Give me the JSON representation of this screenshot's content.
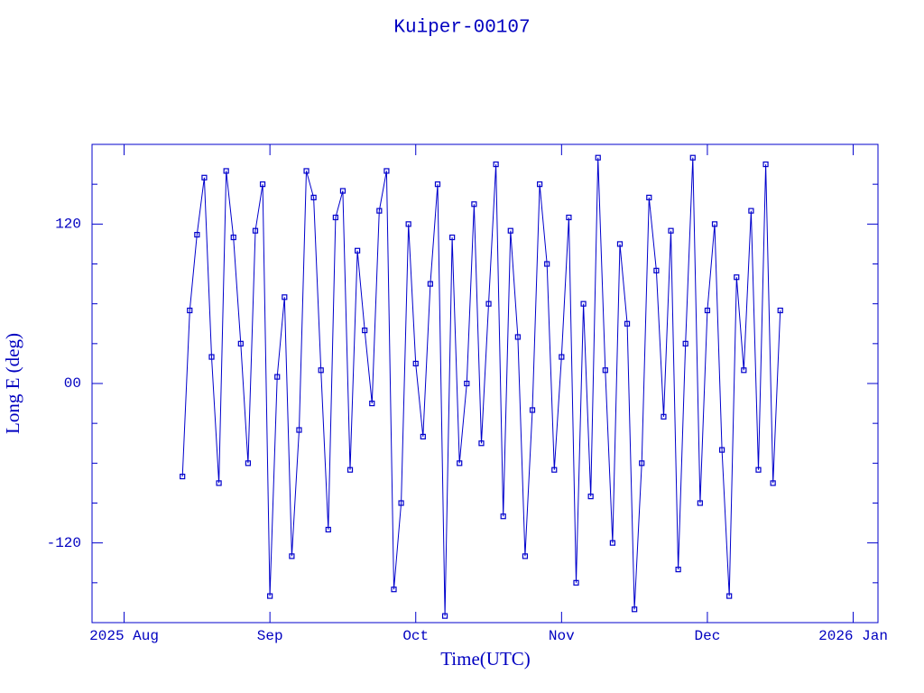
{
  "chart_data": {
    "type": "line",
    "title": "Kuiper-00107",
    "xlabel": "Time(UTC)",
    "ylabel": "Long E (deg)",
    "color": "#0000cc",
    "xlim": [
      7.78,
      13.17
    ],
    "xticks": [
      {
        "value": 8,
        "label": "2025 Aug"
      },
      {
        "value": 9,
        "label": "Sep"
      },
      {
        "value": 10,
        "label": "Oct"
      },
      {
        "value": 11,
        "label": "Nov"
      },
      {
        "value": 12,
        "label": "Dec"
      },
      {
        "value": 13,
        "label": "2026 Jan"
      }
    ],
    "ylim": [
      -180,
      180
    ],
    "yticks": [
      -120,
      {
        "value": 0,
        "label": "00"
      },
      120
    ],
    "yticks_minor": [
      -150,
      -90,
      -60,
      -30,
      30,
      60,
      90,
      150
    ],
    "x": [
      8.4,
      8.45,
      8.5,
      8.55,
      8.6,
      8.65,
      8.7,
      8.75,
      8.8,
      8.85,
      8.9,
      8.95,
      9,
      9.05,
      9.1,
      9.15,
      9.2,
      9.25,
      9.3,
      9.35,
      9.4,
      9.45,
      9.5,
      9.55,
      9.6,
      9.65,
      9.7,
      9.75,
      9.8,
      9.85,
      9.9,
      9.95,
      10,
      10.05,
      10.1,
      10.15,
      10.2,
      10.25,
      10.3,
      10.35,
      10.4,
      10.45,
      10.5,
      10.55,
      10.6,
      10.65,
      10.7,
      10.75,
      10.8,
      10.85,
      10.9,
      10.95,
      11,
      11.05,
      11.1,
      11.15,
      11.2,
      11.25,
      11.3,
      11.35,
      11.4,
      11.45,
      11.5,
      11.55,
      11.6,
      11.65,
      11.7,
      11.75,
      11.8,
      11.85,
      11.9,
      11.95,
      12,
      12.05,
      12.1,
      12.15,
      12.2,
      12.25,
      12.3,
      12.35,
      12.4,
      12.45,
      12.5
    ],
    "values": [
      -70,
      55,
      112,
      155,
      20,
      -75,
      160,
      110,
      30,
      -60,
      115,
      150,
      -160,
      5,
      65,
      -130,
      -35,
      160,
      140,
      10,
      -110,
      125,
      145,
      -65,
      100,
      40,
      -15,
      130,
      160,
      -155,
      -90,
      120,
      15,
      -40,
      75,
      150,
      -175,
      110,
      -60,
      0,
      135,
      -45,
      60,
      165,
      -100,
      115,
      35,
      -130,
      -20,
      150,
      90,
      -65,
      20,
      125,
      -150,
      60,
      -85,
      170,
      10,
      -120,
      105,
      45,
      -170,
      -60,
      140,
      85,
      -25,
      115,
      -140,
      30,
      170,
      -90,
      55,
      120,
      -50,
      -160,
      80,
      10,
      130,
      -65,
      165,
      -75,
      55
    ]
  }
}
